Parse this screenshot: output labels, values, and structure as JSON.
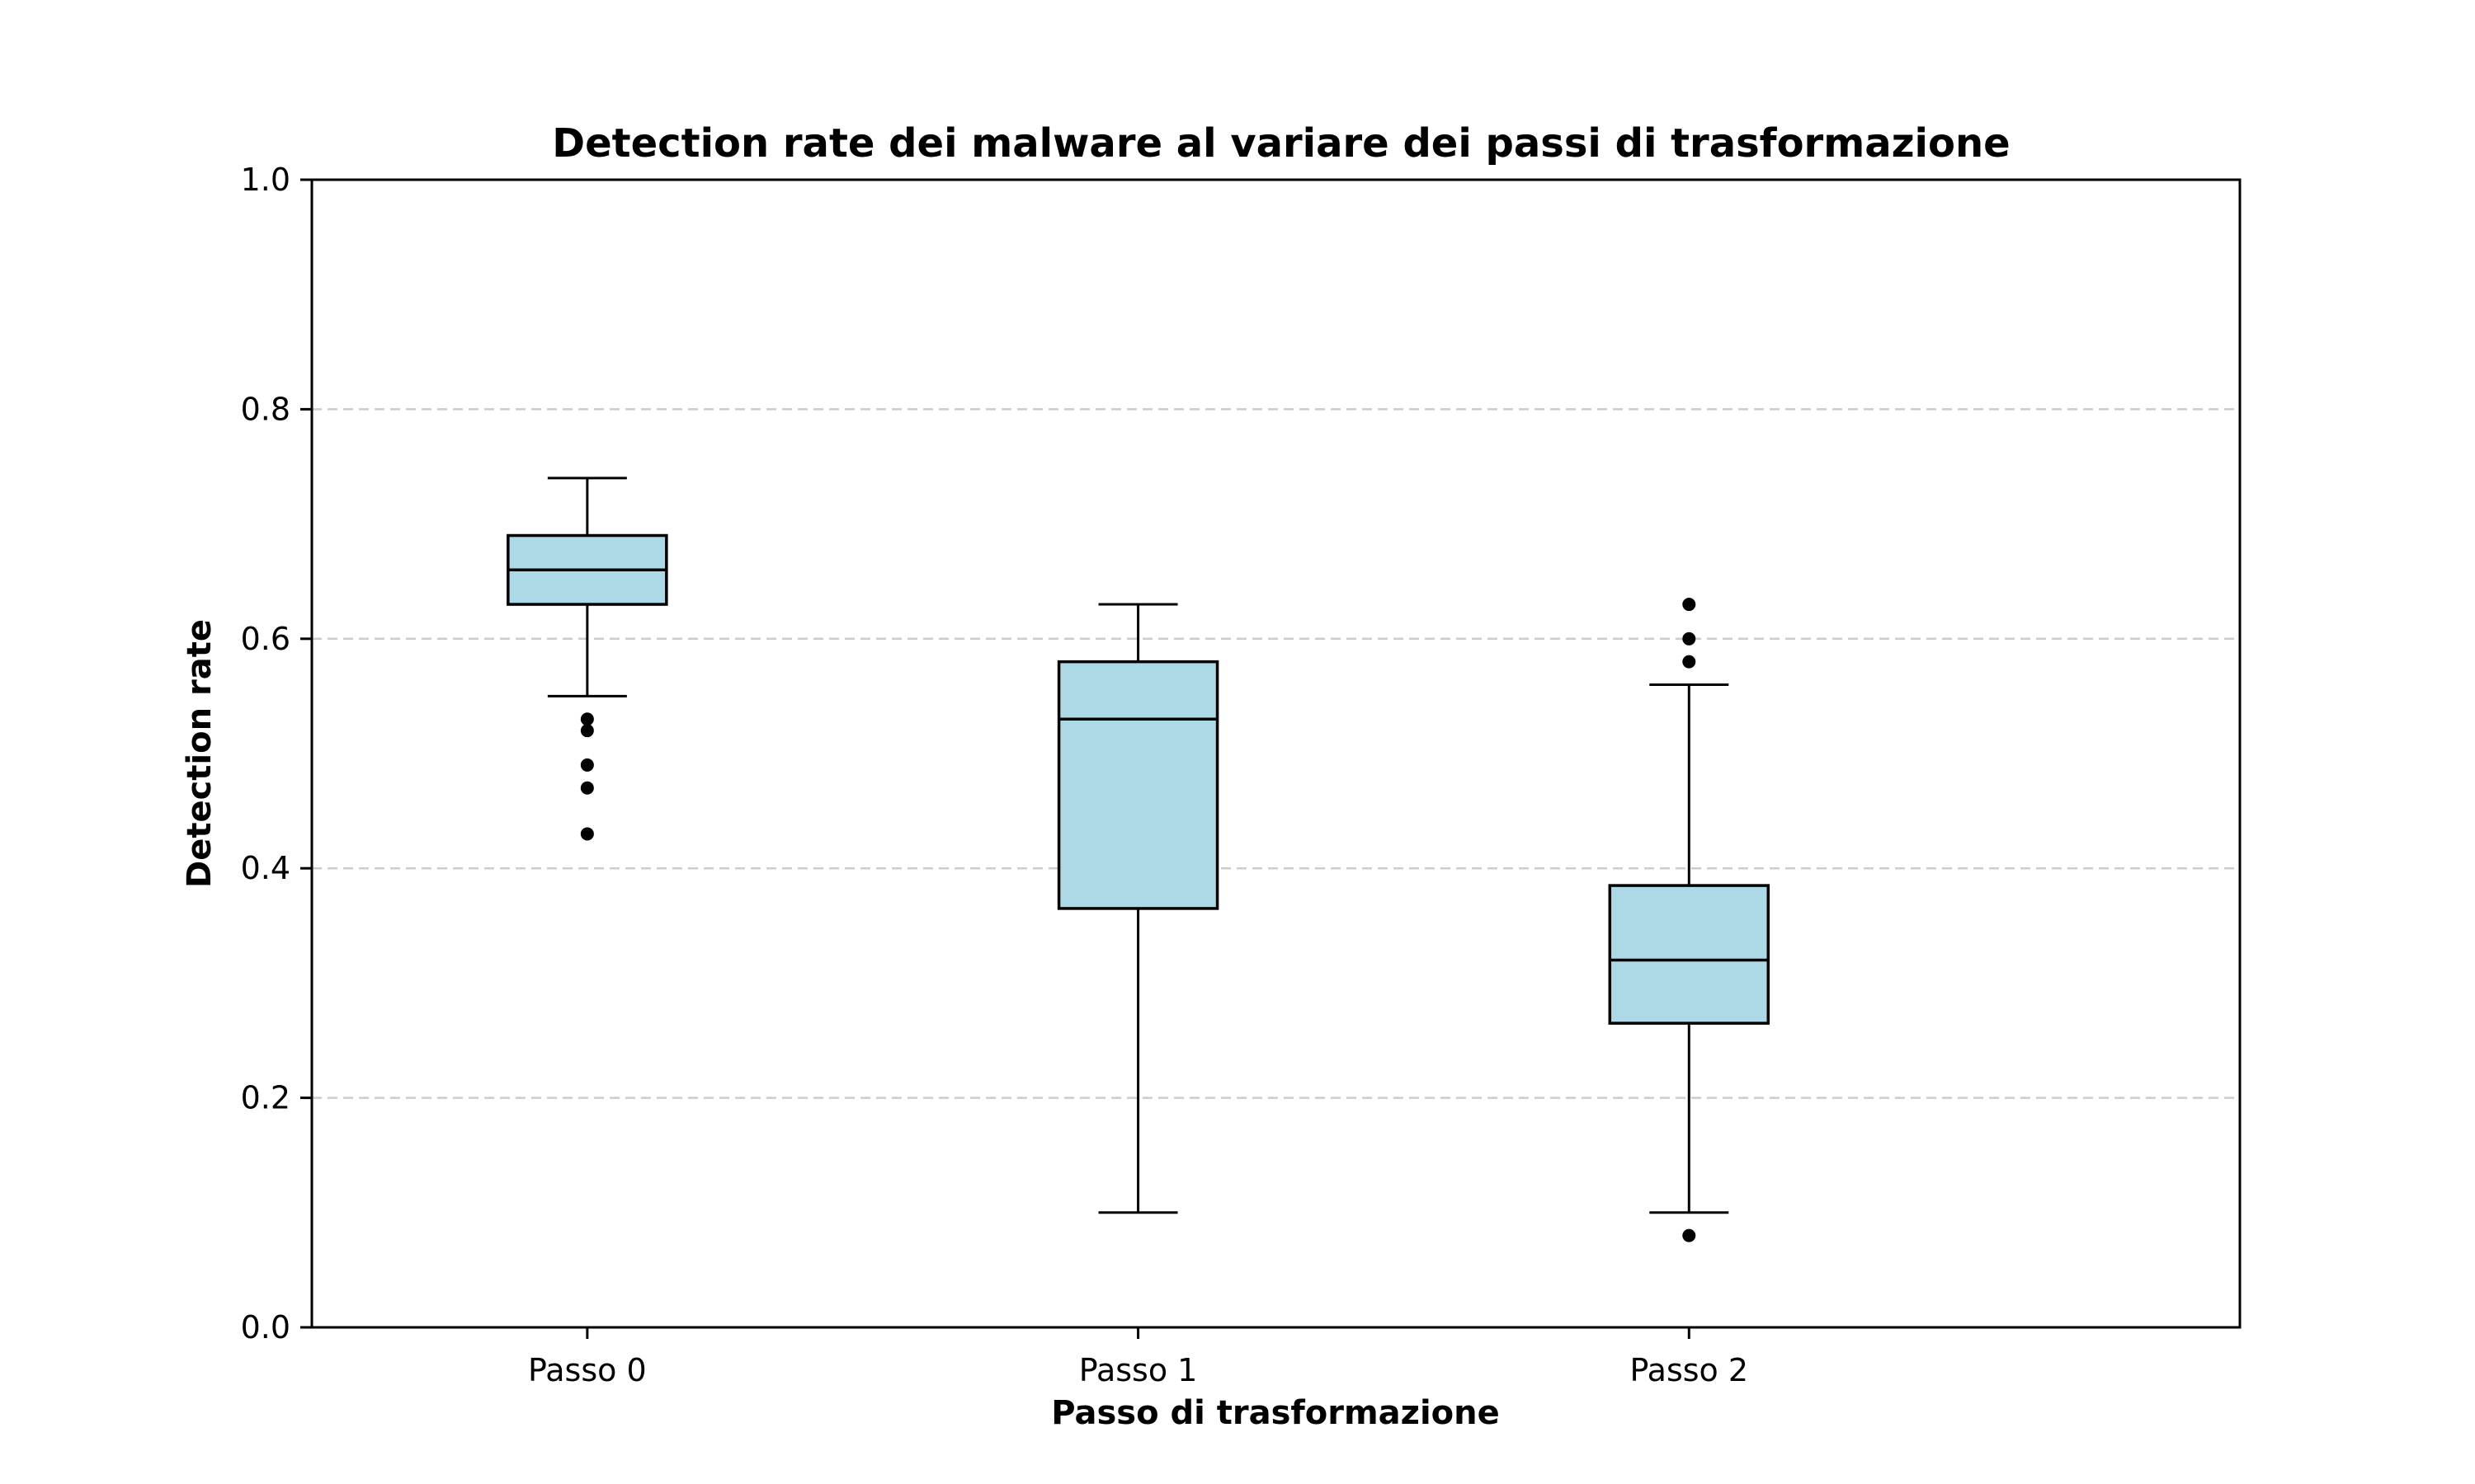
{
  "chart_data": {
    "type": "box",
    "title": "Detection rate dei malware al variare dei passi di trasformazione",
    "xlabel": "Passo di trasformazione",
    "ylabel": "Detection rate",
    "ylim": [
      0,
      1
    ],
    "yticks": [
      "0.0",
      "0.2",
      "0.4",
      "0.6",
      "0.8",
      "1.0"
    ],
    "grid": "y-dashed",
    "box_color": "#add8e6",
    "categories": [
      "Passo 0",
      "Passo 1",
      "Passo 2"
    ],
    "boxes": [
      {
        "category": "Passo 0",
        "whisker_low": 0.55,
        "q1": 0.63,
        "median": 0.66,
        "q3": 0.69,
        "whisker_high": 0.74,
        "outliers": [
          0.53,
          0.52,
          0.49,
          0.47,
          0.43
        ]
      },
      {
        "category": "Passo 1",
        "whisker_low": 0.1,
        "q1": 0.365,
        "median": 0.53,
        "q3": 0.58,
        "whisker_high": 0.63,
        "outliers": []
      },
      {
        "category": "Passo 2",
        "whisker_low": 0.1,
        "q1": 0.265,
        "median": 0.32,
        "q3": 0.385,
        "whisker_high": 0.56,
        "outliers": [
          0.63,
          0.6,
          0.58,
          0.08
        ]
      }
    ]
  }
}
